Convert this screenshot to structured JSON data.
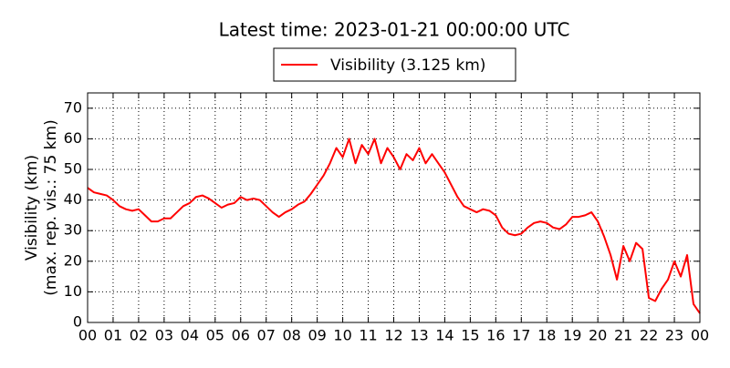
{
  "chart_data": {
    "type": "line",
    "title": "Latest time: 2023-01-21 00:00:00 UTC",
    "ylabel": [
      "Visibility (km)",
      "(max. rep. vis.: 75 km)"
    ],
    "legend": "upper center",
    "grid": true,
    "xlim": [
      0,
      24
    ],
    "ylim": [
      0,
      75
    ],
    "xticks": [
      {
        "value": 0,
        "label": "00"
      },
      {
        "value": 1,
        "label": "01"
      },
      {
        "value": 2,
        "label": "02"
      },
      {
        "value": 3,
        "label": "03"
      },
      {
        "value": 4,
        "label": "04"
      },
      {
        "value": 5,
        "label": "05"
      },
      {
        "value": 6,
        "label": "06"
      },
      {
        "value": 7,
        "label": "07"
      },
      {
        "value": 8,
        "label": "08"
      },
      {
        "value": 9,
        "label": "09"
      },
      {
        "value": 10,
        "label": "10"
      },
      {
        "value": 11,
        "label": "11"
      },
      {
        "value": 12,
        "label": "12"
      },
      {
        "value": 13,
        "label": "13"
      },
      {
        "value": 14,
        "label": "14"
      },
      {
        "value": 15,
        "label": "15"
      },
      {
        "value": 16,
        "label": "16"
      },
      {
        "value": 17,
        "label": "17"
      },
      {
        "value": 18,
        "label": "18"
      },
      {
        "value": 19,
        "label": "19"
      },
      {
        "value": 20,
        "label": "20"
      },
      {
        "value": 21,
        "label": "21"
      },
      {
        "value": 22,
        "label": "22"
      },
      {
        "value": 23,
        "label": "23"
      },
      {
        "value": 24,
        "label": "00"
      }
    ],
    "yticks": [
      0,
      10,
      20,
      30,
      40,
      50,
      60,
      70
    ],
    "x": [
      0,
      0.25,
      0.5,
      0.75,
      1,
      1.25,
      1.5,
      1.75,
      2,
      2.25,
      2.5,
      2.75,
      3,
      3.25,
      3.5,
      3.75,
      4,
      4.25,
      4.5,
      4.75,
      5,
      5.25,
      5.5,
      5.75,
      6,
      6.25,
      6.5,
      6.75,
      7,
      7.25,
      7.5,
      7.75,
      8,
      8.25,
      8.5,
      8.75,
      9,
      9.25,
      9.5,
      9.75,
      10,
      10.25,
      10.5,
      10.75,
      11,
      11.25,
      11.5,
      11.75,
      12,
      12.25,
      12.5,
      12.75,
      13,
      13.25,
      13.5,
      13.75,
      14,
      14.25,
      14.5,
      14.75,
      15,
      15.25,
      15.5,
      15.75,
      16,
      16.25,
      16.5,
      16.75,
      17,
      17.25,
      17.5,
      17.75,
      18,
      18.25,
      18.5,
      18.75,
      19,
      19.25,
      19.5,
      19.75,
      20,
      20.25,
      20.5,
      20.75,
      21,
      21.25,
      21.5,
      21.75,
      22,
      22.25,
      22.5,
      22.75,
      23,
      23.25,
      23.5,
      23.75,
      24
    ],
    "series": [
      {
        "name": "Visibility (3.125 km)",
        "color": "#ff0000",
        "values": [
          44,
          42.5,
          42,
          41.5,
          40,
          38,
          37,
          36.5,
          37,
          35,
          33,
          33,
          34,
          34,
          36,
          38,
          39,
          41,
          41.5,
          40.5,
          39,
          37.5,
          38.5,
          39,
          41,
          40,
          40.5,
          40,
          38,
          36,
          34.5,
          36,
          37,
          38.5,
          39.5,
          42,
          45,
          48,
          52,
          57,
          54,
          60,
          52,
          58,
          55,
          60,
          52,
          57,
          54,
          50,
          55,
          53,
          57,
          52,
          55,
          52,
          49,
          45,
          41,
          38,
          37,
          36,
          37,
          36.5,
          35,
          31,
          29,
          28.5,
          29,
          31,
          32.5,
          33,
          32.5,
          31,
          30.5,
          32,
          34.5,
          34.5,
          35,
          36,
          33,
          28,
          22,
          14,
          25,
          20,
          26,
          24,
          8,
          7,
          11,
          14,
          20,
          15,
          22,
          6,
          3
        ]
      }
    ]
  }
}
